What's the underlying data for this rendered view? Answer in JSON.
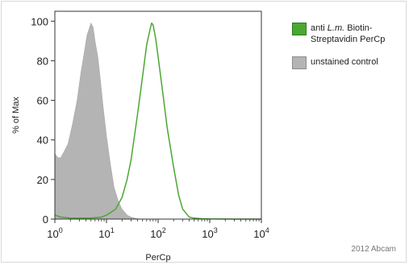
{
  "chart_data": {
    "type": "area",
    "xlabel": "PerCp",
    "ylabel": "% of Max",
    "x_scale": "log",
    "xlim": [
      1,
      10000
    ],
    "ylim": [
      0,
      105
    ],
    "x_ticks": [
      {
        "value": 1,
        "base": "10",
        "exp": "0"
      },
      {
        "value": 10,
        "base": "10",
        "exp": "1"
      },
      {
        "value": 100,
        "base": "10",
        "exp": "2"
      },
      {
        "value": 1000,
        "base": "10",
        "exp": "3"
      },
      {
        "value": 10000,
        "base": "10",
        "exp": "4"
      }
    ],
    "y_ticks": [
      "0",
      "20",
      "40",
      "60",
      "80",
      "100"
    ],
    "grid": false,
    "legend_position": "right",
    "series": [
      {
        "name_parts": [
          "anti ",
          "L.m.",
          " Biotin-",
          "Streptavidin PerCp"
        ],
        "style": "line",
        "color": "#4aa832",
        "x": [
          1,
          1.3,
          2,
          3,
          5,
          8,
          10,
          15,
          20,
          25,
          30,
          40,
          50,
          60,
          70,
          75,
          80,
          90,
          100,
          120,
          150,
          200,
          250,
          300,
          400,
          500,
          700,
          1000,
          3000,
          10000
        ],
        "y": [
          2,
          1,
          0.5,
          0.5,
          0.5,
          1,
          2,
          5,
          11,
          20,
          30,
          53,
          72,
          88,
          96,
          99,
          98,
          91,
          82,
          66,
          46,
          26,
          12,
          5,
          1,
          0.5,
          0.2,
          0.1,
          0,
          0
        ]
      },
      {
        "name": "unstained control",
        "style": "filled",
        "color": "#b4b4b4",
        "x": [
          1,
          1.15,
          1.3,
          1.5,
          1.8,
          2.2,
          2.7,
          3.2,
          3.7,
          4.2,
          4.6,
          5,
          5.5,
          6,
          6.8,
          7.5,
          8.5,
          10,
          12,
          14,
          17,
          20,
          25,
          30,
          35,
          40,
          50
        ],
        "y": [
          33,
          31,
          31,
          34,
          38,
          48,
          60,
          74,
          84,
          93,
          96,
          99,
          97,
          90,
          82,
          72,
          58,
          42,
          27,
          16,
          9,
          5,
          2,
          1,
          0.5,
          0.2,
          0
        ]
      }
    ]
  },
  "watermark": "2012 Abcam"
}
